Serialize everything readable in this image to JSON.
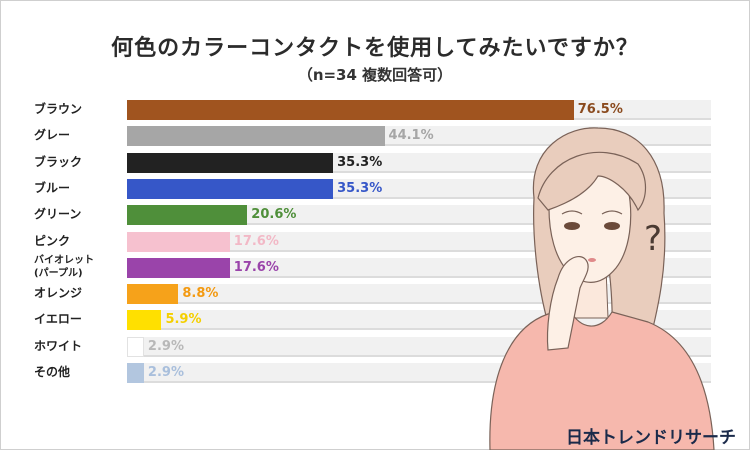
{
  "header": {
    "title": "何色のカラーコンタクトを使用してみたいですか？",
    "subtitle": "（n=34 複数回答可）"
  },
  "brand": "日本トレンドリサーチ",
  "chart_data": {
    "type": "bar",
    "orientation": "horizontal",
    "title": "何色のカラーコンタクトを使用してみたいですか？",
    "subtitle": "（n=34 複数回答可）",
    "categories": [
      "ブラウン",
      "グレー",
      "ブラック",
      "ブルー",
      "グリーン",
      "ピンク",
      "バイオレット\n(パープル)",
      "オレンジ",
      "イエロー",
      "ホワイト",
      "その他"
    ],
    "values": [
      76.5,
      44.1,
      35.3,
      35.3,
      20.6,
      17.6,
      17.6,
      8.8,
      5.9,
      2.9,
      2.9
    ],
    "value_labels": [
      "76.5%",
      "44.1%",
      "35.3%",
      "35.3%",
      "20.6%",
      "17.6%",
      "17.6%",
      "8.8%",
      "5.9%",
      "2.9%",
      "2.9%"
    ],
    "colors": [
      "#a0541f",
      "#a6a6a6",
      "#222222",
      "#3657c8",
      "#4f8f3a",
      "#f6c1cf",
      "#9a44aa",
      "#f6a21a",
      "#ffe000",
      "#ffffff",
      "#b2c6df"
    ],
    "label_colors": [
      "#8a4a1e",
      "#a6a6a6",
      "#222222",
      "#3657c8",
      "#4f8f3a",
      "#f2b8c6",
      "#9a44aa",
      "#f39a12",
      "#f4cf00",
      "#b8b8b8",
      "#a9bfdc"
    ],
    "xlim": [
      0,
      100
    ],
    "legend": "none"
  }
}
